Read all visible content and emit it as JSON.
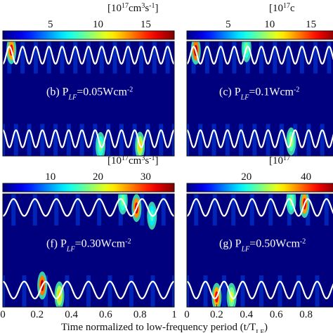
{
  "xlabel": "Time normalized to low-frequency period (t/T",
  "xlabel_sub": "LF",
  "xlabel_close": ")",
  "colormap": "jet",
  "chart_data": [
    {
      "type": "heatmap",
      "label": "(b) P",
      "label_sub": "LF",
      "label_val": "=0.05Wcm",
      "label_sup": "-2",
      "unit": "[10",
      "unit_sup": "17",
      "unit_mid": "cm",
      "unit_sup2": "3",
      "unit_mid2": "s",
      "unit_sup3": "-1",
      "unit_close": "]",
      "colorbar_ticks": [
        5,
        10,
        15
      ],
      "colorbar_range": [
        0,
        18
      ],
      "xlim": [
        0,
        1
      ],
      "x_ticks": [],
      "envelope_cycles": 13,
      "hotspots": [
        {
          "t": 0.05,
          "branch": "upper",
          "value": 16
        },
        {
          "t": 0.8,
          "branch": "lower",
          "value": 12
        },
        {
          "t": 0.57,
          "branch": "lower",
          "value": 9
        }
      ]
    },
    {
      "type": "heatmap",
      "label": "(c) P",
      "label_sub": "LF",
      "label_val": "=0.1Wcm",
      "label_sup": "-2",
      "unit": "[10",
      "unit_sup": "17",
      "unit_mid": "c",
      "unit_sup2": "",
      "unit_mid2": "",
      "unit_sup3": "",
      "unit_close": "",
      "colorbar_ticks": [
        5,
        10,
        15
      ],
      "colorbar_range": [
        0,
        18
      ],
      "xlim": [
        0,
        1
      ],
      "x_ticks": [],
      "envelope_cycles": 11,
      "hotspots": [
        {
          "t": 0.06,
          "branch": "upper",
          "value": 17
        },
        {
          "t": 0.4,
          "branch": "upper",
          "value": 9
        },
        {
          "t": 0.7,
          "branch": "lower",
          "value": 10
        }
      ]
    },
    {
      "type": "heatmap",
      "label": "(f) P",
      "label_sub": "LF",
      "label_val": "=0.30Wcm",
      "label_sup": "-2",
      "unit": "[10",
      "unit_sup": "17",
      "unit_mid": "cm",
      "unit_sup2": "3",
      "unit_mid2": "s",
      "unit_sup3": "-1",
      "unit_close": "]",
      "colorbar_ticks": [
        10,
        20,
        30
      ],
      "colorbar_range": [
        0,
        36
      ],
      "xlim": [
        0,
        1
      ],
      "x_ticks": [
        "0",
        "0.2",
        "0.4",
        "0.6",
        "0.8",
        "1"
      ],
      "envelope_cycles": 8,
      "hotspots": [
        {
          "t": 0.23,
          "branch": "lower",
          "value": 34
        },
        {
          "t": 0.33,
          "branch": "lower",
          "value": 24
        },
        {
          "t": 0.78,
          "branch": "upper",
          "value": 33
        },
        {
          "t": 0.7,
          "branch": "upper",
          "value": 18
        },
        {
          "t": 0.87,
          "branch": "upper",
          "value": 16
        }
      ]
    },
    {
      "type": "heatmap",
      "label": "(g) P",
      "label_sub": "LF",
      "label_val": "=0.50Wcm",
      "label_sup": "-2",
      "unit": "[10",
      "unit_sup": "17",
      "unit_mid": "",
      "unit_sup2": "",
      "unit_mid2": "",
      "unit_sup3": "",
      "unit_close": "",
      "colorbar_ticks": [
        20,
        40
      ],
      "colorbar_range": [
        0,
        50
      ],
      "xlim": [
        0,
        1
      ],
      "x_ticks": [
        "0",
        "0.2",
        "0.4",
        "0.6",
        "0.8"
      ],
      "envelope_cycles": 8,
      "hotspots": [
        {
          "t": 0.2,
          "branch": "lower",
          "value": 44
        },
        {
          "t": 0.3,
          "branch": "lower",
          "value": 30
        },
        {
          "t": 0.79,
          "branch": "upper",
          "value": 45
        },
        {
          "t": 0.7,
          "branch": "upper",
          "value": 25
        }
      ]
    }
  ]
}
